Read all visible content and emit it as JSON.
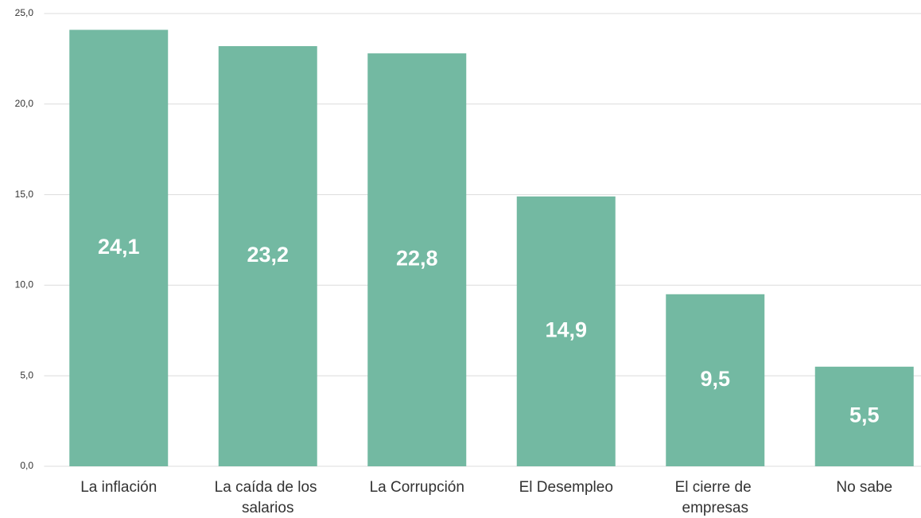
{
  "chart_data": {
    "type": "bar",
    "categories": [
      "La inflación",
      "La caída de los salarios",
      "La Corrupción",
      "El Desempleo",
      "El cierre de empresas",
      "No sabe"
    ],
    "values": [
      24.1,
      23.2,
      22.8,
      14.9,
      9.5,
      5.5
    ],
    "value_labels": [
      "24,1",
      "23,2",
      "22,8",
      "14,9",
      "9,5",
      "5,5"
    ],
    "color": "#73b9a2",
    "ylim": [
      0,
      25
    ],
    "yticks": [
      {
        "value": 0,
        "label": "0,0"
      },
      {
        "value": 5,
        "label": "5,0"
      },
      {
        "value": 10,
        "label": "10,0"
      },
      {
        "value": 15,
        "label": "15,0"
      },
      {
        "value": 20,
        "label": "20,0"
      },
      {
        "value": 25,
        "label": "25,0"
      }
    ],
    "grid": true
  }
}
